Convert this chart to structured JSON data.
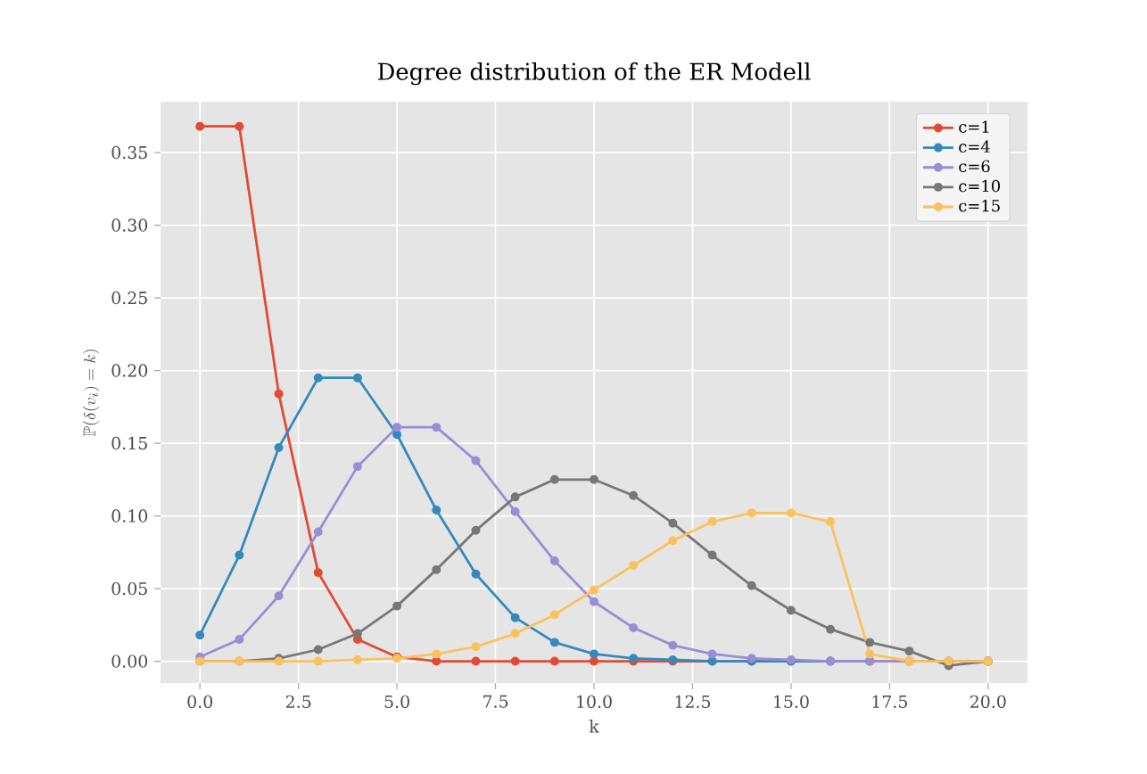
{
  "chart_data": {
    "type": "line",
    "title": "Degree distribution of the ER Modell",
    "xlabel": "k",
    "ylabel": "\\mathbb{P}(\\delta(v_i) = k)",
    "x": [
      0,
      1,
      2,
      3,
      4,
      5,
      6,
      7,
      8,
      9,
      10,
      11,
      12,
      13,
      14,
      15,
      16,
      17,
      18,
      19,
      20
    ],
    "series": [
      {
        "name": "c=1",
        "color": "#e24a33",
        "values": [
          0.368,
          0.368,
          0.184,
          0.061,
          0.015,
          0.003,
          0.0,
          0.0,
          0.0,
          0.0,
          0.0,
          0.0,
          0.0,
          0.0,
          0.0,
          0.0,
          0.0,
          0.0,
          0.0,
          0.0,
          0.0
        ]
      },
      {
        "name": "c=4",
        "color": "#348abd",
        "values": [
          0.018,
          0.073,
          0.147,
          0.195,
          0.195,
          0.156,
          0.104,
          0.06,
          0.03,
          0.013,
          0.005,
          0.002,
          0.001,
          0.0,
          0.0,
          0.0,
          0.0,
          0.0,
          null,
          null,
          null
        ]
      },
      {
        "name": "c=6",
        "color": "#988ed5",
        "values": [
          0.003,
          0.015,
          0.045,
          0.089,
          0.134,
          0.161,
          0.161,
          0.138,
          0.103,
          0.069,
          0.041,
          0.023,
          0.011,
          0.005,
          0.002,
          0.001,
          0.0,
          0.0,
          0.0,
          0.0,
          0.0
        ]
      },
      {
        "name": "c=10",
        "color": "#777777",
        "values": [
          0.0,
          0.0,
          0.002,
          0.008,
          0.019,
          0.038,
          0.063,
          0.09,
          0.113,
          0.125,
          0.125,
          0.114,
          0.095,
          0.073,
          0.052,
          0.035,
          0.022,
          0.013,
          0.007,
          -0.003,
          0.0
        ]
      },
      {
        "name": "c=15",
        "color": "#fbc15e",
        "values": [
          0.0,
          0.0,
          0.0,
          0.0,
          0.001,
          0.002,
          0.005,
          0.01,
          0.019,
          0.032,
          0.049,
          0.066,
          0.083,
          0.096,
          0.102,
          0.102,
          0.096,
          0.005,
          0.0,
          0.0,
          0.0
        ]
      }
    ],
    "xlim": [
      -1,
      21
    ],
    "ylim": [
      -0.015,
      0.385
    ],
    "xticks": [
      {
        "value": 0,
        "label": "0.0"
      },
      {
        "value": 2.5,
        "label": "2.5"
      },
      {
        "value": 5,
        "label": "5.0"
      },
      {
        "value": 7.5,
        "label": "7.5"
      },
      {
        "value": 10,
        "label": "10.0"
      },
      {
        "value": 12.5,
        "label": "12.5"
      },
      {
        "value": 15,
        "label": "15.0"
      },
      {
        "value": 17.5,
        "label": "17.5"
      },
      {
        "value": 20,
        "label": "20.0"
      }
    ],
    "yticks": [
      {
        "value": 0,
        "label": "0.00"
      },
      {
        "value": 0.05,
        "label": "0.05"
      },
      {
        "value": 0.1,
        "label": "0.10"
      },
      {
        "value": 0.15,
        "label": "0.15"
      },
      {
        "value": 0.2,
        "label": "0.20"
      },
      {
        "value": 0.25,
        "label": "0.25"
      },
      {
        "value": 0.3,
        "label": "0.30"
      },
      {
        "value": 0.35,
        "label": "0.35"
      }
    ],
    "grid": true,
    "legend": "top right",
    "marker": "circle",
    "line_style": "solid"
  }
}
